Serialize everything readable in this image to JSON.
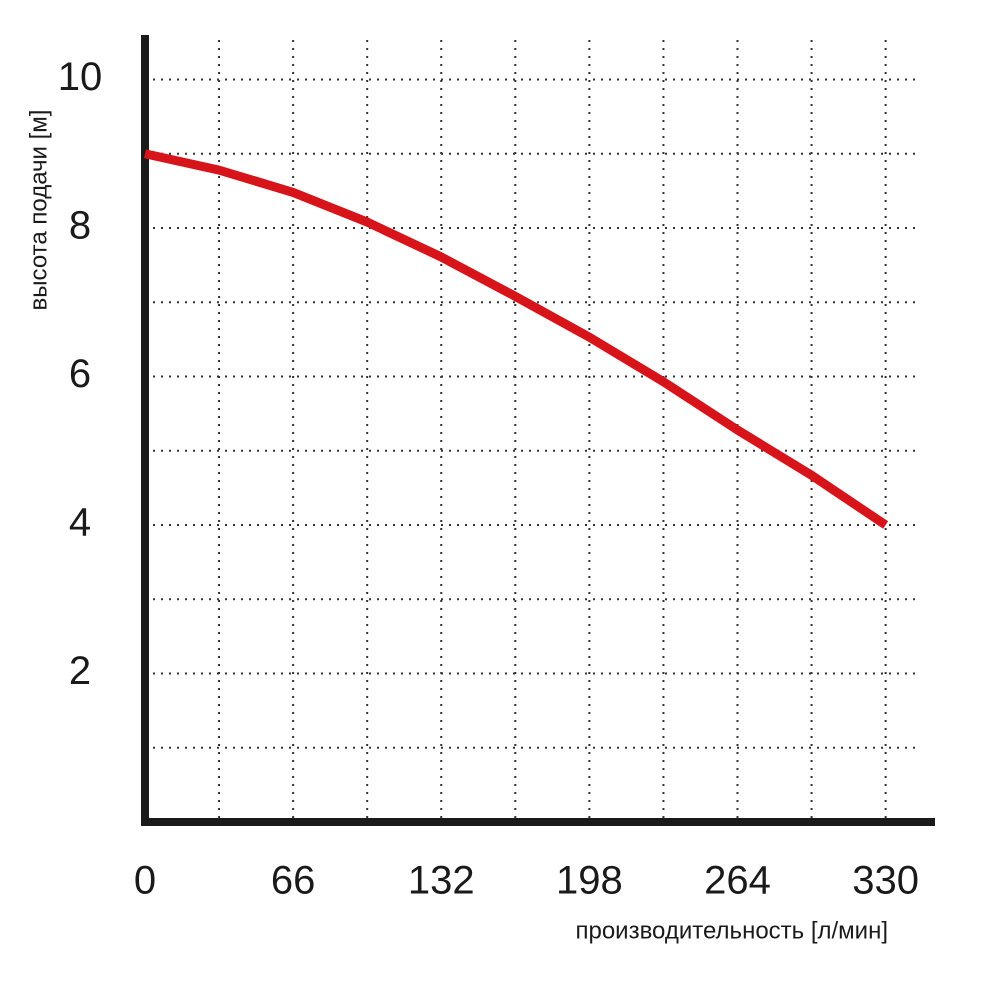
{
  "chart_data": {
    "type": "line",
    "x_label": "производительность [л/мин]",
    "y_label": "высота подачи [м]",
    "x": [
      0,
      33,
      66,
      99,
      132,
      165,
      198,
      231,
      264,
      297,
      330
    ],
    "values": [
      9.0,
      8.78,
      8.48,
      8.08,
      7.61,
      7.08,
      6.53,
      5.93,
      5.28,
      4.67,
      4.0
    ],
    "color": "#d7141a",
    "xlim": [
      0,
      352
    ],
    "xticks": [
      0,
      66,
      132,
      198,
      264,
      330
    ],
    "ylim": [
      0,
      10.6
    ],
    "yticks": [
      2,
      4,
      6,
      8,
      10
    ],
    "grid": true
  }
}
